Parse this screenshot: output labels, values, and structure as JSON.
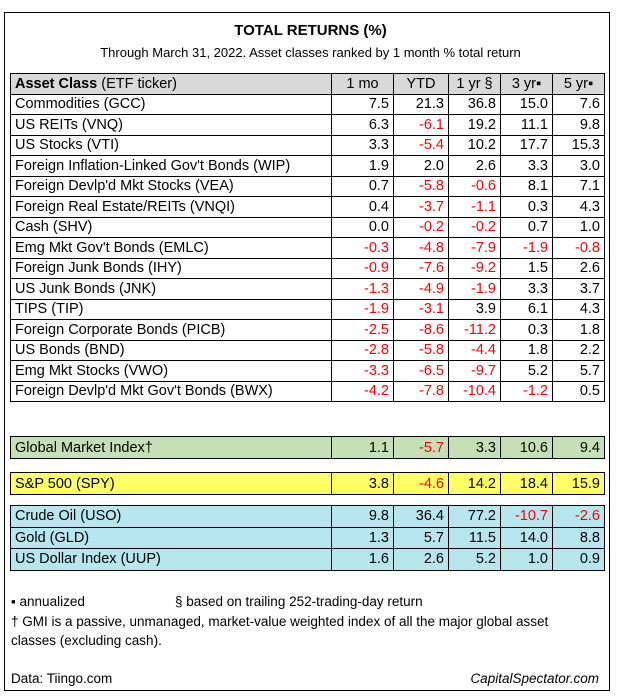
{
  "title": "TOTAL RETURNS (%)",
  "subtitle": "Through March 31, 2022. Asset classes ranked by 1 month % total return",
  "header": {
    "asset_bold": "Asset Class",
    "asset_rest": " (ETF ticker)",
    "m1": "1 mo",
    "ytd": "YTD",
    "y1": "1 yr §",
    "y3": "3 yr▪",
    "y5": "5 yr▪"
  },
  "rows": [
    {
      "name": "Commodities (GCC)",
      "v": [
        "7.5",
        "21.3",
        "36.8",
        "15.0",
        "7.6"
      ]
    },
    {
      "name": "US REITs (VNQ)",
      "v": [
        "6.3",
        "-6.1",
        "19.2",
        "11.1",
        "9.8"
      ]
    },
    {
      "name": "US Stocks (VTI)",
      "v": [
        "3.3",
        "-5.4",
        "10.2",
        "17.7",
        "15.3"
      ]
    },
    {
      "name": "Foreign Inflation-Linked Gov't Bonds (WIP)",
      "v": [
        "1.9",
        "2.0",
        "2.6",
        "3.3",
        "3.0"
      ]
    },
    {
      "name": "Foreign Devlp'd Mkt Stocks (VEA)",
      "v": [
        "0.7",
        "-5.8",
        "-0.6",
        "8.1",
        "7.1"
      ]
    },
    {
      "name": "Foreign Real Estate/REITs (VNQI)",
      "v": [
        "0.4",
        "-3.7",
        "-1.1",
        "0.3",
        "4.3"
      ]
    },
    {
      "name": "Cash (SHV)",
      "v": [
        "0.0",
        "-0.2",
        "-0.2",
        "0.7",
        "1.0"
      ]
    },
    {
      "name": "Emg Mkt Gov't Bonds (EMLC)",
      "v": [
        "-0.3",
        "-4.8",
        "-7.9",
        "-1.9",
        "-0.8"
      ]
    },
    {
      "name": "Foreign Junk Bonds (IHY)",
      "v": [
        "-0.9",
        "-7.6",
        "-9.2",
        "1.5",
        "2.6"
      ]
    },
    {
      "name": "US Junk Bonds (JNK)",
      "v": [
        "-1.3",
        "-4.9",
        "-1.9",
        "3.3",
        "3.7"
      ]
    },
    {
      "name": "TIPS (TIP)",
      "v": [
        "-1.9",
        "-3.1",
        "3.9",
        "6.1",
        "4.3"
      ]
    },
    {
      "name": "Foreign Corporate Bonds (PICB)",
      "v": [
        "-2.5",
        "-8.6",
        "-11.2",
        "0.3",
        "1.8"
      ]
    },
    {
      "name": "US Bonds (BND)",
      "v": [
        "-2.8",
        "-5.8",
        "-4.4",
        "1.8",
        "2.2"
      ]
    },
    {
      "name": "Emg Mkt Stocks (VWO)",
      "v": [
        "-3.3",
        "-6.5",
        "-9.7",
        "5.2",
        "5.7"
      ]
    },
    {
      "name": "Foreign Devlp'd Mkt Gov't Bonds (BWX)",
      "v": [
        "-4.2",
        "-7.8",
        "-10.4",
        "-1.2",
        "0.5"
      ]
    }
  ],
  "gmi": {
    "name": "Global Market Index†",
    "v": [
      "1.1",
      "-5.7",
      "3.3",
      "10.6",
      "9.4"
    ]
  },
  "spy": {
    "name": "S&P 500 (SPY)",
    "v": [
      "3.8",
      "-4.6",
      "14.2",
      "18.4",
      "15.9"
    ]
  },
  "other": [
    {
      "name": "Crude Oil (USO)",
      "v": [
        "9.8",
        "36.4",
        "77.2",
        "-10.7",
        "-2.6"
      ]
    },
    {
      "name": "Gold (GLD)",
      "v": [
        "1.3",
        "5.7",
        "11.5",
        "14.0",
        "8.8"
      ]
    },
    {
      "name": "US Dollar Index (UUP)",
      "v": [
        "1.6",
        "2.6",
        "5.2",
        "1.0",
        "0.9"
      ]
    }
  ],
  "colors": {
    "negative": "#ff0000",
    "header_bg": "#d9d9d9",
    "gmi_bg": "#c5e0b4",
    "spy_bg": "#ffff66",
    "other_bg": "#b7e6ee"
  },
  "footnotes": {
    "annualized": "▪ annualized",
    "trailing": "§ based on trailing 252-trading-day return",
    "gmi_line1": "† GMI is a passive, unmanaged, market-value weighted index of all the major global asset",
    "gmi_line2": "classes (excluding cash).",
    "data_source": "Data: Tiingo.com",
    "brand": "CapitalSpectator.com"
  }
}
